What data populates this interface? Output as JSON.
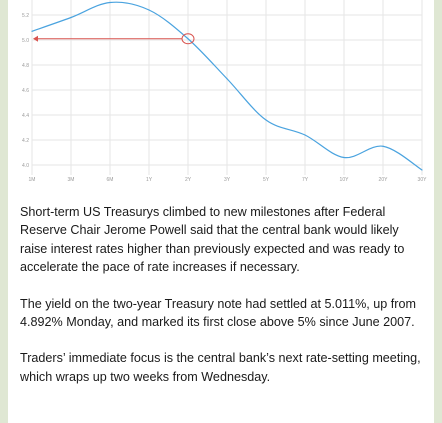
{
  "colors": {
    "line": "#4aa3df",
    "annotation": "#d9534f",
    "grid": "#e6e6e6",
    "page_background": "#dfe7d3"
  },
  "chart_data": {
    "type": "line",
    "x": [
      "10",
      "11",
      "12",
      "13",
      "14",
      "15",
      "16",
      "17",
      "18",
      "19",
      "20"
    ],
    "y_ticks": [
      "4.0",
      "4.2",
      "4.4",
      "4.6",
      "4.8",
      "5.0",
      "5.2"
    ],
    "x_tick_labels": [
      "1M",
      "3M",
      "6M",
      "1Y",
      "2Y",
      "3Y",
      "5Y",
      "7Y",
      "10Y",
      "20Y",
      "30Y"
    ],
    "series": [
      {
        "values": [
          5.07,
          5.18,
          5.3,
          5.24,
          5.01,
          4.69,
          4.36,
          4.24,
          4.06,
          4.15,
          3.96
        ]
      }
    ],
    "ylim": [
      3.92,
      5.32
    ],
    "annotation": {
      "type": "arrow",
      "from_x": "2Y",
      "value": 5.01,
      "marker": "circle"
    },
    "grid": true
  },
  "article": {
    "paragraphs": [
      "Short-term US Treasurys climbed to new milestones after Federal Reserve Chair Jerome Powell said that the central bank would likely raise interest rates higher than previously expected and was ready to accelerate the pace of rate increases if necessary.",
      "The yield on the two-year Treasury note had settled at 5.011%, up from 4.892% Monday, and marked its first close above 5% since June 2007.",
      "Traders’ immediate focus is the central bank’s next rate-setting meeting, which wraps up two weeks from Wednesday."
    ]
  }
}
